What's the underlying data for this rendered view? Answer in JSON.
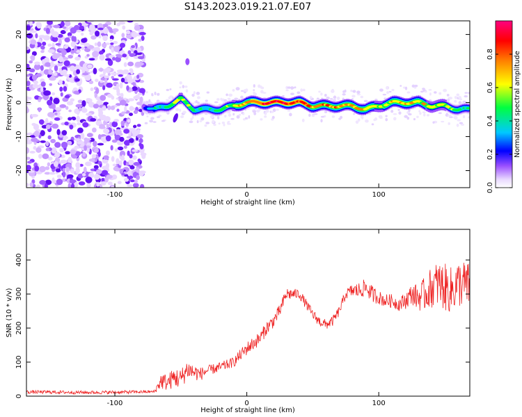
{
  "title": "S143.2023.019.21.07.E07",
  "chart_data": [
    {
      "type": "heatmap",
      "xlabel": "Height of straight line (km)",
      "ylabel": "Frequency (Hz)",
      "xlim": [
        -167,
        169
      ],
      "ylim": [
        -25,
        24
      ],
      "x_ticks": [
        -100,
        0,
        100
      ],
      "y_ticks": [
        -20,
        -10,
        0,
        10,
        20
      ],
      "grid": false,
      "colorbar": {
        "label": "Normalized spectral amplitude",
        "range": [
          0,
          1
        ],
        "ticks": [
          0.0,
          0.2,
          0.4,
          0.6,
          0.8
        ],
        "tick_labels": [
          "0.0",
          "0.2",
          "0.4",
          "0.6",
          "0.8"
        ],
        "colors": [
          "#ffffff",
          "#e8d8ff",
          "#9b50ff",
          "#0000ff",
          "#00c8ff",
          "#00ff40",
          "#ffff00",
          "#ff8000",
          "#ff0000",
          "#ff0080"
        ]
      },
      "noise_region_x": [
        -167,
        -78
      ],
      "signal_trace": {
        "x": [
          -78,
          -70,
          -60,
          -50,
          -40,
          -30,
          -20,
          -10,
          0,
          10,
          20,
          30,
          40,
          50,
          60,
          70,
          80,
          90,
          100,
          110,
          120,
          130,
          140,
          150,
          160,
          169
        ],
        "frequency": [
          -1,
          -2,
          -1,
          1,
          -2,
          -2,
          -2,
          -1,
          0,
          0,
          0,
          0,
          0,
          -1,
          -1,
          -1,
          -1,
          -2,
          -1,
          0,
          0,
          0,
          -1,
          -1,
          -2,
          -2
        ],
        "peak_amplitude": [
          0.3,
          0.5,
          0.6,
          0.7,
          0.6,
          0.5,
          0.6,
          0.7,
          0.85,
          0.9,
          0.95,
          0.95,
          0.9,
          0.85,
          0.85,
          0.8,
          0.8,
          0.75,
          0.7,
          0.75,
          0.8,
          0.75,
          0.7,
          0.7,
          0.6,
          0.55
        ]
      },
      "secondary_blob": {
        "x": -45,
        "frequency": 12
      }
    },
    {
      "type": "line",
      "xlabel": "Height of straight line (km)",
      "ylabel": "SNR (10 * v/v)",
      "xlim": [
        -167,
        169
      ],
      "ylim": [
        0,
        490
      ],
      "x_ticks": [
        -100,
        0,
        100
      ],
      "y_ticks": [
        0,
        100,
        200,
        300,
        400
      ],
      "grid": false,
      "line_color": "#ee2222",
      "series": [
        {
          "x": [
            -167,
            -150,
            -130,
            -110,
            -90,
            -70,
            -65,
            -60,
            -55,
            -50,
            -45,
            -40,
            -35,
            -30,
            -25,
            -20,
            -10,
            0,
            10,
            15,
            20,
            25,
            30,
            35,
            40,
            45,
            50,
            55,
            60,
            65,
            70,
            75,
            80,
            85,
            90,
            95,
            100,
            105,
            110,
            115,
            120,
            125,
            130,
            135,
            140,
            145,
            150,
            155,
            160,
            165,
            169
          ],
          "values": [
            12,
            12,
            11,
            11,
            12,
            13,
            45,
            40,
            55,
            50,
            80,
            70,
            65,
            75,
            80,
            85,
            100,
            140,
            170,
            200,
            220,
            250,
            300,
            300,
            300,
            270,
            240,
            220,
            210,
            220,
            250,
            300,
            310,
            310,
            320,
            300,
            290,
            280,
            280,
            270,
            280,
            300,
            290,
            300,
            320,
            330,
            320,
            310,
            330,
            330,
            320
          ],
          "noise_amplitude": [
            5,
            5,
            5,
            5,
            5,
            4,
            25,
            25,
            30,
            30,
            30,
            25,
            20,
            15,
            15,
            15,
            15,
            20,
            20,
            20,
            20,
            20,
            20,
            15,
            15,
            15,
            15,
            15,
            15,
            15,
            15,
            15,
            20,
            25,
            25,
            25,
            20,
            20,
            20,
            20,
            25,
            30,
            40,
            50,
            60,
            70,
            70,
            70,
            70,
            70,
            70
          ]
        }
      ]
    }
  ]
}
